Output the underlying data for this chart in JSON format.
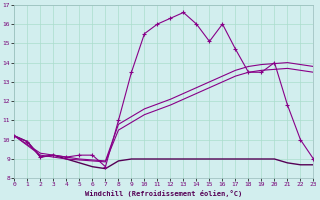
{
  "xlabel": "Windchill (Refroidissement éolien,°C)",
  "xlim": [
    0,
    23
  ],
  "ylim": [
    8,
    17
  ],
  "yticks": [
    8,
    9,
    10,
    11,
    12,
    13,
    14,
    15,
    16,
    17
  ],
  "xticks": [
    0,
    1,
    2,
    3,
    4,
    5,
    6,
    7,
    8,
    9,
    10,
    11,
    12,
    13,
    14,
    15,
    16,
    17,
    18,
    19,
    20,
    21,
    22,
    23
  ],
  "bg_color": "#d2eeee",
  "grid_color": "#aaddcc",
  "line_color": "#880088",
  "curve_main_x": [
    0,
    1,
    2,
    3,
    4,
    5,
    6,
    7,
    8,
    9,
    10,
    11,
    12,
    13,
    14,
    15,
    16,
    17,
    18,
    19,
    20,
    21,
    22,
    23
  ],
  "curve_main_y": [
    10.2,
    9.9,
    9.1,
    9.2,
    9.1,
    9.2,
    9.2,
    8.6,
    11.0,
    13.5,
    15.5,
    16.0,
    16.3,
    16.6,
    16.0,
    15.1,
    16.0,
    14.7,
    13.5,
    13.5,
    14.0,
    11.8,
    10.0,
    9.0
  ],
  "curve_flat_x": [
    0,
    1,
    2,
    3,
    4,
    5,
    6,
    7,
    8,
    9,
    10,
    11,
    12,
    13,
    14,
    15,
    16,
    17,
    18,
    19,
    20,
    21,
    22,
    23
  ],
  "curve_flat_y": [
    10.2,
    9.9,
    9.1,
    9.2,
    9.0,
    8.8,
    8.6,
    8.5,
    8.9,
    9.0,
    9.0,
    9.0,
    9.0,
    9.0,
    9.0,
    9.0,
    9.0,
    9.0,
    9.0,
    9.0,
    9.0,
    8.8,
    8.7,
    8.7
  ],
  "curve_diag1_x": [
    0,
    2,
    3,
    4,
    5,
    6,
    7,
    8,
    9,
    10,
    11,
    12,
    13,
    14,
    15,
    16,
    17,
    18,
    19,
    20,
    21,
    22,
    23
  ],
  "curve_diag1_y": [
    10.2,
    9.2,
    9.1,
    9.0,
    8.95,
    8.9,
    8.85,
    10.5,
    10.9,
    11.3,
    11.55,
    11.8,
    12.1,
    12.4,
    12.7,
    13.0,
    13.3,
    13.5,
    13.6,
    13.65,
    13.7,
    13.6,
    13.5
  ],
  "curve_diag2_x": [
    0,
    2,
    3,
    4,
    5,
    6,
    7,
    8,
    9,
    10,
    11,
    12,
    13,
    14,
    15,
    16,
    17,
    18,
    19,
    20,
    21,
    22,
    23
  ],
  "curve_diag2_y": [
    10.2,
    9.3,
    9.2,
    9.1,
    9.0,
    8.95,
    8.9,
    10.8,
    11.2,
    11.6,
    11.85,
    12.1,
    12.4,
    12.7,
    13.0,
    13.3,
    13.6,
    13.8,
    13.9,
    13.95,
    14.0,
    13.9,
    13.8
  ]
}
